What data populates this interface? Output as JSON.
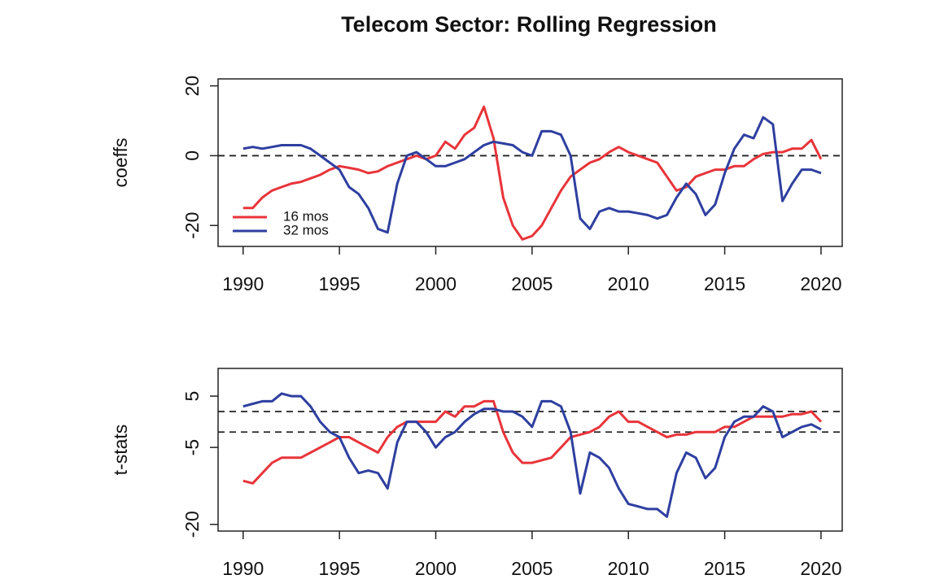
{
  "title": "Telecom Sector: Rolling Regression",
  "chart_data": [
    {
      "type": "line",
      "ylabel": "coeffs",
      "legend": "bottomleft",
      "hlines": [
        0
      ],
      "xlim": [
        1988.7,
        2021.1
      ],
      "xticks": [
        1990,
        1995,
        2000,
        2005,
        2010,
        2015,
        2020
      ],
      "ylim": [
        -26,
        22
      ],
      "yticks": [
        -20,
        0,
        20
      ],
      "x": [
        1990,
        1990.5,
        1991,
        1991.5,
        1992,
        1992.5,
        1993,
        1993.5,
        1994,
        1994.5,
        1995,
        1995.5,
        1996,
        1996.5,
        1997,
        1997.5,
        1998,
        1998.5,
        1999,
        1999.5,
        2000,
        2000.5,
        2001,
        2001.5,
        2002,
        2002.5,
        2003,
        2003.5,
        2004,
        2004.5,
        2005,
        2005.5,
        2006,
        2006.5,
        2007,
        2007.5,
        2008,
        2008.5,
        2009,
        2009.5,
        2010,
        2010.5,
        2011,
        2011.5,
        2012,
        2012.5,
        2013,
        2013.5,
        2014,
        2014.5,
        2015,
        2015.5,
        2016,
        2016.5,
        2017,
        2017.5,
        2018,
        2018.5,
        2019,
        2019.5,
        2020
      ],
      "series": [
        {
          "name": "16 mos",
          "color": "#e8343a",
          "values": [
            -15,
            -15,
            -12,
            -10,
            -9,
            -8,
            -7.5,
            -6.5,
            -5.5,
            -4,
            -3,
            -3.5,
            -4,
            -5,
            -4.5,
            -3,
            -2,
            -1,
            0,
            -1,
            0,
            4,
            2,
            6,
            8,
            14,
            5,
            -12,
            -20,
            -24,
            -23,
            -20,
            -15,
            -10,
            -6,
            -4,
            -2,
            -1,
            1,
            2.5,
            1,
            0,
            -1,
            -2,
            -6,
            -10,
            -9,
            -6,
            -5,
            -4,
            -4,
            -3,
            -3,
            -1,
            0.5,
            1,
            1,
            2,
            2,
            4.5,
            -1
          ]
        },
        {
          "name": "32 mos",
          "color": "#2e3fa0",
          "values": [
            2,
            2.5,
            2,
            2.5,
            3,
            3,
            3,
            2,
            0,
            -2,
            -4,
            -9,
            -11,
            -15,
            -21,
            -22,
            -8,
            0,
            1,
            -1,
            -3,
            -3,
            -2,
            -1,
            1,
            3,
            4,
            3.5,
            3,
            1,
            0,
            7,
            7,
            6,
            0,
            -18,
            -21,
            -16,
            -15,
            -16,
            -16,
            -16.5,
            -17,
            -18,
            -17,
            -12,
            -8,
            -11,
            -17,
            -14,
            -5,
            2,
            6,
            5,
            11,
            9,
            -13,
            -8,
            -4,
            -4,
            -5
          ]
        }
      ]
    },
    {
      "type": "line",
      "ylabel": "t-stats",
      "hlines": [
        2,
        -2
      ],
      "xlim": [
        1988.7,
        2021.1
      ],
      "xticks": [
        1990,
        1995,
        2000,
        2005,
        2010,
        2015,
        2020
      ],
      "ylim": [
        -21.3,
        10.4
      ],
      "yticks": [
        -20,
        -5,
        5
      ],
      "x": [
        1990,
        1990.5,
        1991,
        1991.5,
        1992,
        1992.5,
        1993,
        1993.5,
        1994,
        1994.5,
        1995,
        1995.5,
        1996,
        1996.5,
        1997,
        1997.5,
        1998,
        1998.5,
        1999,
        1999.5,
        2000,
        2000.5,
        2001,
        2001.5,
        2002,
        2002.5,
        2003,
        2003.5,
        2004,
        2004.5,
        2005,
        2005.5,
        2006,
        2006.5,
        2007,
        2007.5,
        2008,
        2008.5,
        2009,
        2009.5,
        2010,
        2010.5,
        2011,
        2011.5,
        2012,
        2012.5,
        2013,
        2013.5,
        2014,
        2014.5,
        2015,
        2015.5,
        2016,
        2016.5,
        2017,
        2017.5,
        2018,
        2018.5,
        2019,
        2019.5,
        2020
      ],
      "series": [
        {
          "name": "16 mos",
          "color": "#e8343a",
          "values": [
            -11.5,
            -12,
            -10,
            -8,
            -7,
            -7,
            -7,
            -6,
            -5,
            -4,
            -3,
            -3,
            -4,
            -5,
            -6,
            -3,
            -1,
            0,
            0,
            0,
            0,
            2,
            1,
            3,
            3,
            4,
            4,
            -2,
            -6,
            -8,
            -8,
            -7.5,
            -7,
            -5,
            -3,
            -2.5,
            -2,
            -1,
            1,
            2,
            0,
            0,
            -1,
            -2,
            -3,
            -2.5,
            -2.5,
            -2,
            -2,
            -2,
            -1,
            -1,
            0,
            1,
            1,
            1,
            1,
            1.5,
            1.5,
            2,
            0
          ]
        },
        {
          "name": "32 mos",
          "color": "#2e3fa0",
          "values": [
            3,
            3.5,
            4,
            4,
            5.5,
            5,
            5,
            3,
            0,
            -2,
            -3,
            -7,
            -10,
            -9.5,
            -10,
            -13,
            -4,
            0,
            0,
            -2,
            -5,
            -3,
            -2,
            0,
            1.5,
            2.5,
            2.5,
            2,
            2,
            1,
            -1,
            4,
            4,
            3,
            -2,
            -14,
            -6,
            -7,
            -9,
            -13,
            -16,
            -16.5,
            -17,
            -17,
            -18.5,
            -10,
            -6,
            -7,
            -11,
            -9,
            -3,
            0,
            1,
            1,
            3,
            2,
            -3,
            -2,
            -1,
            -0.5,
            -1.5
          ]
        }
      ]
    }
  ]
}
